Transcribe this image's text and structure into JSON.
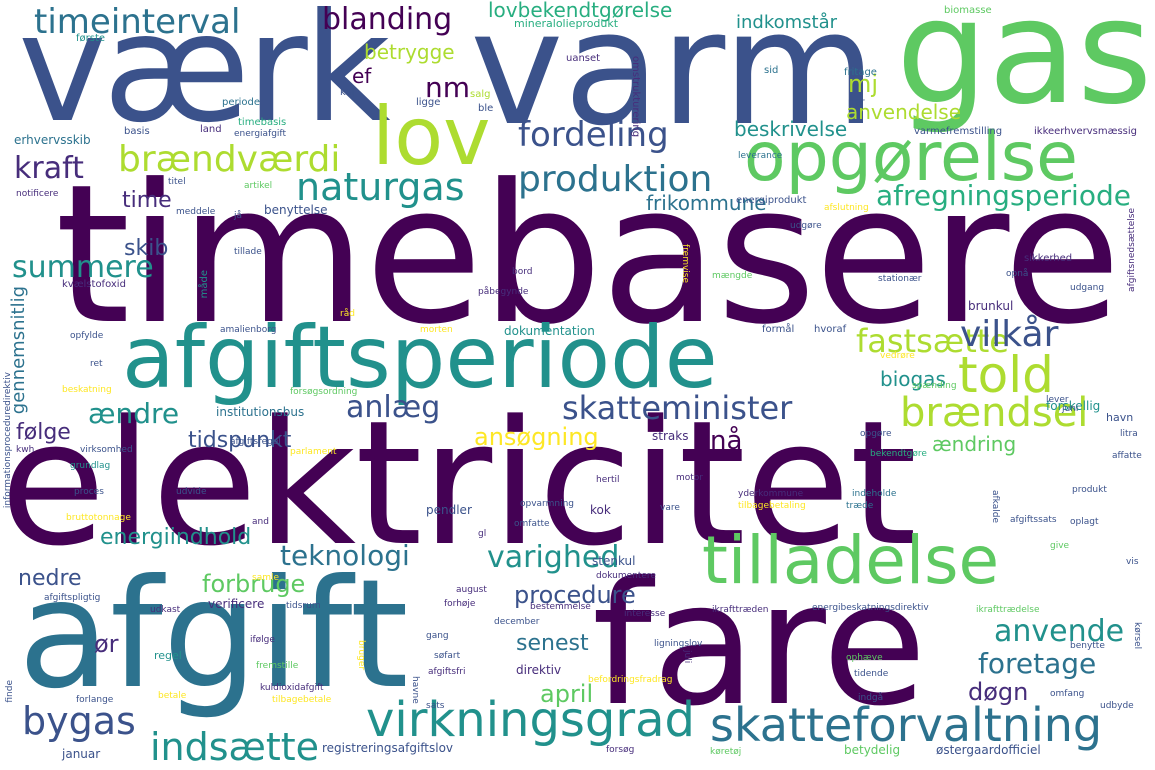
{
  "words": {
    "timebasere": "timebasere",
    "elektricitet": "elektricitet",
    "afgift": "afgift",
    "fare": "fare",
    "vaerk": "værk",
    "varm": "varm",
    "gas": "gas",
    "afgiftsperiode": "afgiftsperiode",
    "lov": "lov",
    "opgorelse": "opgørelse",
    "tilladelse": "tilladelse",
    "virkningsgrad": "virkningsgrad",
    "skatteforvaltning": "skatteforvaltning",
    "timeinterval": "timeinterval",
    "blanding": "blanding",
    "lovbekendtgorelse": "lovbekendtgørelse",
    "indkomstar": "indkomstår",
    "betrygge": "betrygge",
    "fordeling": "fordeling",
    "brandvaerdi": "brændværdi",
    "naturgas": "naturgas",
    "produktion": "produktion",
    "afregningsperiode": "afregningsperiode",
    "told": "told",
    "braendsel": "brændsel",
    "fastsaette": "fastsætte",
    "vilkar": "vilkår",
    "anlaeg": "anlæg",
    "skatteminister": "skatteminister",
    "kraft": "kraft",
    "summere": "summere",
    "gennemsnitlig": "gennemsnitlig",
    "aendre": "ændre",
    "folge": "følge",
    "tidspunkt": "tidspunkt",
    "ansogning": "ansøgning",
    "na": "nå",
    "foretage": "foretage",
    "anvende": "anvende",
    "dogn": "døgn",
    "bygas": "bygas",
    "indsaette": "indsætte",
    "teknologi": "teknologi",
    "varighed": "varighed",
    "procedure": "procedure",
    "energiindhold": "energiindhold",
    "forbruge": "forbruge",
    "nedre": "nedre",
    "senest": "senest",
    "april": "april",
    "or": "ør",
    "biogas": "biogas",
    "nm": "nm",
    "mj": "mj",
    "ef": "ef",
    "anvendelse": "anvendelse",
    "beskrivelse": "beskrivelse",
    "frikommune": "frikommune",
    "time": "time",
    "skib": "skib",
    "benyttelse": "benyttelse",
    "energiprodukt": "energiprodukt",
    "aendring": "ændring",
    "havn": "havn",
    "straks": "straks",
    "institutionsbus": "institutionsbus",
    "dokumentation": "dokumentation",
    "brunkul": "brunkul",
    "stenkul": "stenkul",
    "pendler": "pendler",
    "kok": "kok",
    "direktiv": "direktiv",
    "forskellig": "forskellig",
    "mineralolieprodukt": "mineralolieprodukt",
    "biomasse": "biomasse",
    "forste": "første",
    "uanset": "uanset",
    "omstrukturering": "omstrukturering",
    "fritage": "fritage",
    "sid": "sid",
    "salg": "salg",
    "kaj": "kaj",
    "ligge": "ligge",
    "ble": "ble",
    "periode": "periode",
    "timebasis": "timebasis",
    "per": "per",
    "erhvervsskib": "erhvervsskib",
    "basis": "basis",
    "land": "land",
    "energiafgift": "energiafgift",
    "varmefremstilling": "varmefremstilling",
    "ikkeerhvervsmaessig": "ikkeerhvervsmæssig",
    "levarance": "leverance",
    "titel": "titel",
    "notificere": "notificere",
    "artikel": "artikel",
    "meddele": "meddele",
    "afslutning": "afslutning",
    "ja": "jå",
    "udgore": "udgøre",
    "afgiftsnedsaettelse": "afgiftsnedsættelse",
    "tillade": "tillade",
    "made": "måde",
    "bord": "bord",
    "fremvise": "fremvise",
    "sikkerhed": "sikkerhed",
    "opna": "opnå",
    "stationaer": "stationær",
    "udgang": "udgang",
    "kvaelstofoxid": "kvælstofoxid",
    "pabegynde": "påbegynde",
    "maengde": "mængde",
    "rad": "råd",
    "opfylde": "opfylde",
    "amalienborg": "amalienborg",
    "morten": "morten",
    "formal": "formål",
    "hvoraf": "hvoraf",
    "vedrore": "vedrøre",
    "ret": "ret",
    "forsogsordning": "forsøgsordning",
    "spaending": "spænding",
    "beskatning": "beskatning",
    "lever": "lever",
    "juni": "juni",
    "informationsproceduredirektiv": "informationsproceduredirektiv",
    "kwh": "kwh",
    "virksomhed": "virksomhed",
    "afgiftsregel": "afgiftsregel",
    "parlament": "parlament",
    "opgore": "opgøre",
    "litra": "litra",
    "grundlag": "grundlag",
    "bekendtgore": "bekendtgøre",
    "affatte": "affatte",
    "proces": "proces",
    "udvide": "udvide",
    "hertil": "hertil",
    "motor": "motor",
    "yderkommune": "yderkommune",
    "indeholde": "indeholde",
    "produkt": "produkt",
    "bruttotonnage": "bruttotonnage",
    "opvarmning": "opvarmning",
    "vare": "vare",
    "tilbagebetaling": "tilbagebetaling",
    "trade": "træde",
    "afgiftssats": "afgiftssats",
    "oplagt": "oplagt",
    "afkalde": "afkalde",
    "and": "and",
    "gl": "gl",
    "omfatte": "omfatte",
    "give": "give",
    "samle": "samle",
    "dokumentere": "dokumentere",
    "vis": "vis",
    "afgiftspligtig": "afgiftspligtig",
    "august": "august",
    "udkast": "udkast",
    "verificere": "verificere",
    "tidsrum": "tidsrum",
    "forhoje": "forhøje",
    "bestemmelse": "bestemmelse",
    "interesse": "interesse",
    "ikrafttraeden": "ikrafttræden",
    "energibeskatningsdirektiv": "energibeskatningsdirektiv",
    "ikrafttraedelse": "ikrafttrædelse",
    "december": "december",
    "ifolge": "ifølge",
    "gang": "gang",
    "ligningslov": "ligningslov",
    "korsel": "kørsel",
    "benytte": "benytte",
    "regel": "regel",
    "bruger": "bruger",
    "sofart": "søfart",
    "befordringsfradrag": "befordringsfradrag",
    "fremstille": "fremstille",
    "afgiftsfri": "afgiftsfri",
    "ophaeve": "ophæve",
    "finde": "finde",
    "juli": "juli",
    "tidende": "tidende",
    "kuldioxidafgift": "kuldioxidafgift",
    "havne": "havne",
    "omfang": "omfang",
    "betale": "betale",
    "sats": "sats",
    "indga": "indgå",
    "udbyde": "udbyde",
    "forlange": "forlange",
    "tilbagebetale": "tilbagebetale",
    "januar": "januar",
    "registreringsafgiftslov": "registreringsafgiftslov",
    "forsog": "forsøg",
    "koretoj": "køretøj",
    "betydelig": "betydelig",
    "ostergaardofficiel": "østergaardofficiel"
  },
  "colors": {
    "dark_purple": "#440154",
    "indigo": "#472d7b",
    "blue_indigo": "#3b528b",
    "slate_blue": "#2c728e",
    "teal": "#21918c",
    "green_teal": "#28ae80",
    "green": "#5ec962",
    "lime": "#addc30",
    "yellow": "#fde725"
  }
}
